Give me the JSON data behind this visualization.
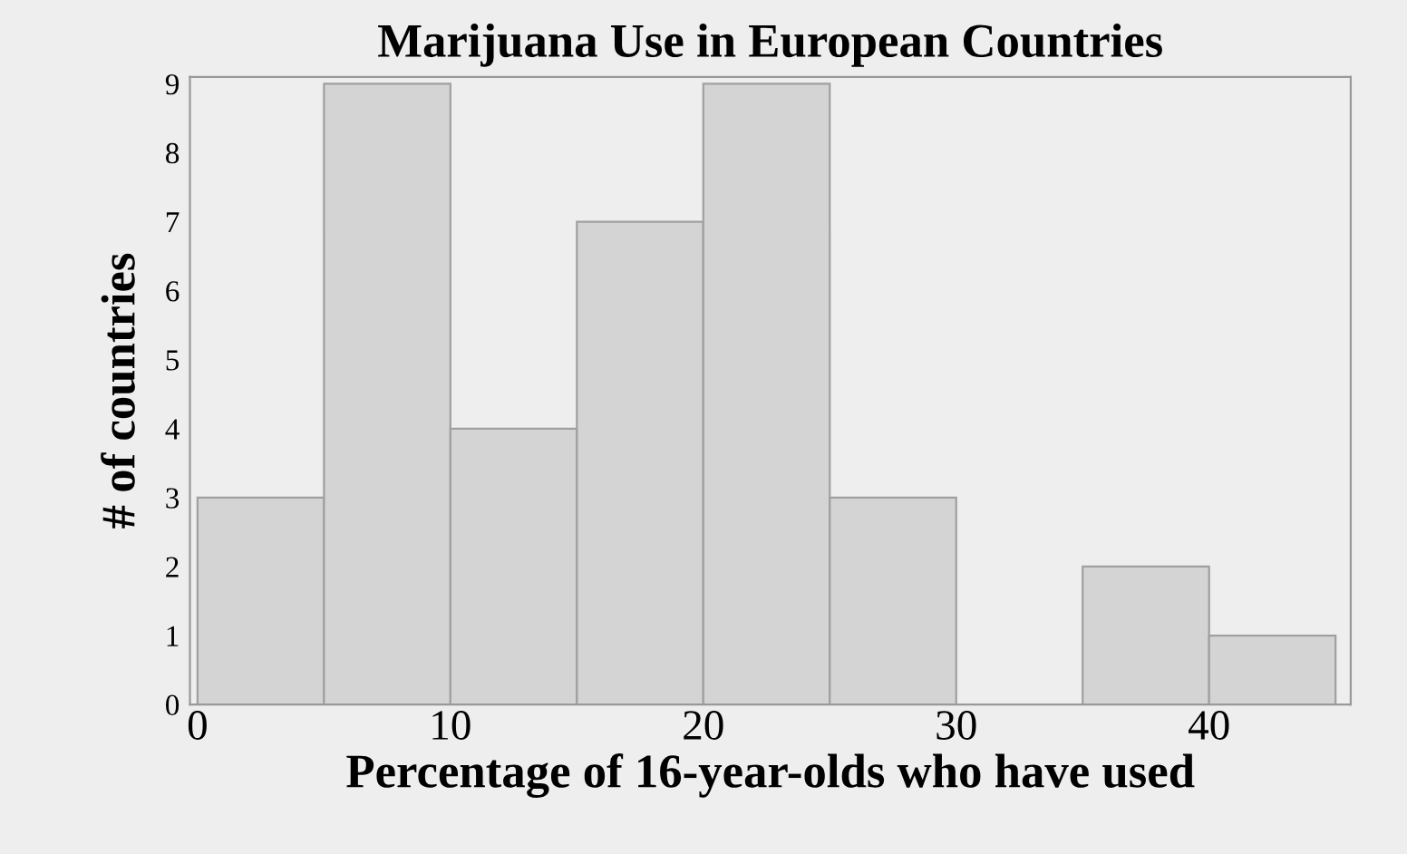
{
  "chart_data": {
    "type": "histogram",
    "title": "Marijuana Use in European Countries",
    "xlabel": "Percentage of 16-year-olds who have used",
    "ylabel": "# of countries",
    "bins": [
      0,
      5,
      10,
      15,
      20,
      25,
      30,
      35,
      40,
      45
    ],
    "values": [
      3,
      9,
      4,
      7,
      9,
      3,
      0,
      2,
      1
    ],
    "color": "#d4d4d4",
    "xlim": [
      -0.3,
      45.6
    ],
    "xticks": [
      0,
      10,
      20,
      30,
      40
    ],
    "ylim": [
      0,
      9.1
    ],
    "yticks": [
      0,
      1,
      2,
      3,
      4,
      5,
      6,
      7,
      8,
      9
    ],
    "grid": false
  }
}
